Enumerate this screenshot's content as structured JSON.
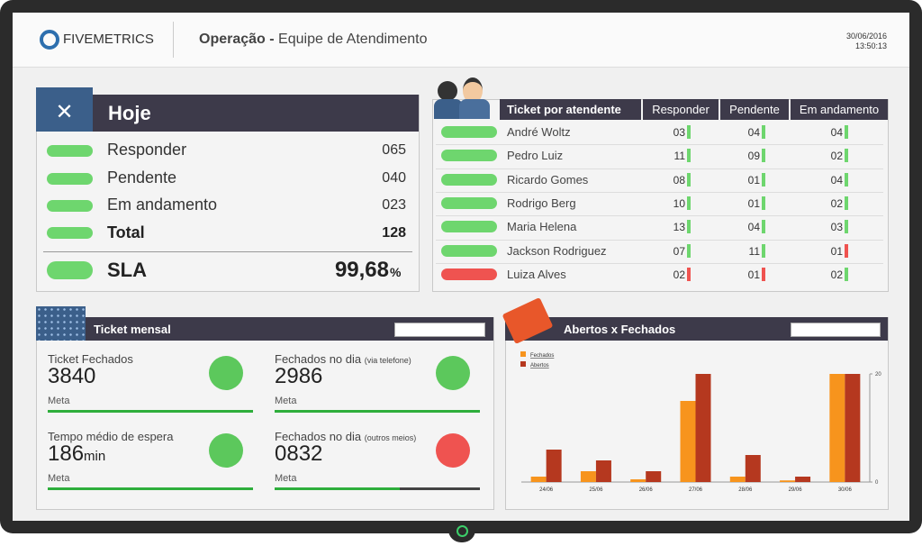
{
  "header": {
    "brand": "FIVEMETRICS",
    "title_bold": "Operação -",
    "title": "Equipe de Atendimento",
    "date": "30/06/2016",
    "time": "13:50:13"
  },
  "today": {
    "title": "Hoje",
    "rows": [
      {
        "label": "Responder",
        "value": "065"
      },
      {
        "label": "Pendente",
        "value": "040"
      },
      {
        "label": "Em andamento",
        "value": "023"
      }
    ],
    "total_label": "Total",
    "total_value": "128",
    "sla_label": "SLA",
    "sla_value": "99,68",
    "sla_unit": "%"
  },
  "agents": {
    "title": "Ticket por atendente",
    "columns": [
      "Responder",
      "Pendente",
      "Em andamento"
    ],
    "rows": [
      {
        "name": "André Woltz",
        "color": "#6ed66e",
        "cells": [
          {
            "text": "03",
            "color": "#6ed66e"
          },
          {
            "text": "04",
            "color": "#6ed66e"
          },
          {
            "text": "04",
            "color": "#6ed66e"
          }
        ]
      },
      {
        "name": "Pedro Luiz",
        "color": "#6ed66e",
        "cells": [
          {
            "text": "11",
            "color": "#6ed66e"
          },
          {
            "text": "09",
            "color": "#6ed66e"
          },
          {
            "text": "02",
            "color": "#6ed66e"
          }
        ]
      },
      {
        "name": "Ricardo Gomes",
        "color": "#6ed66e",
        "cells": [
          {
            "text": "08",
            "color": "#6ed66e"
          },
          {
            "text": "01",
            "color": "#6ed66e"
          },
          {
            "text": "04",
            "color": "#6ed66e"
          }
        ]
      },
      {
        "name": "Rodrigo Berg",
        "color": "#6ed66e",
        "cells": [
          {
            "text": "10",
            "color": "#6ed66e"
          },
          {
            "text": "01",
            "color": "#6ed66e"
          },
          {
            "text": "02",
            "color": "#6ed66e"
          }
        ]
      },
      {
        "name": "Maria Helena",
        "color": "#6ed66e",
        "cells": [
          {
            "text": "13",
            "color": "#6ed66e"
          },
          {
            "text": "04",
            "color": "#6ed66e"
          },
          {
            "text": "03",
            "color": "#6ed66e"
          }
        ]
      },
      {
        "name": "Jackson Rodriguez",
        "color": "#6ed66e",
        "cells": [
          {
            "text": "07",
            "color": "#6ed66e"
          },
          {
            "text": "11",
            "color": "#6ed66e"
          },
          {
            "text": "01",
            "color": "#ef5350"
          }
        ]
      },
      {
        "name": "Luiza Alves",
        "color": "#ef5350",
        "cells": [
          {
            "text": "02",
            "color": "#ef5350"
          },
          {
            "text": "01",
            "color": "#ef5350"
          },
          {
            "text": "02",
            "color": "#6ed66e"
          }
        ]
      }
    ]
  },
  "monthly": {
    "title": "Ticket mensal",
    "items": [
      {
        "label": "Ticket Fechados",
        "value": "3840",
        "meta": "Meta",
        "progress": 100,
        "icon_color": "#5cc85c"
      },
      {
        "label": "Fechados no dia",
        "note": "(via telefone)",
        "value": "2986",
        "meta": "Meta",
        "progress": 100,
        "icon_color": "#5cc85c"
      },
      {
        "label": "Tempo médio de espera",
        "value": "186",
        "unit": "min",
        "meta": "Meta",
        "progress": 100,
        "icon_color": "#5cc85c"
      },
      {
        "label": "Fechados no dia",
        "note": "(outros meios)",
        "value": "0832",
        "meta": "Meta",
        "progress": 61,
        "icon_color": "#ef5350"
      }
    ]
  },
  "chart": {
    "type": "bar",
    "title": "Abertos x Fechados",
    "categories": [
      "24/06",
      "25/06",
      "26/06",
      "27/06",
      "28/06",
      "29/06",
      "30/06"
    ],
    "series": [
      {
        "name": "Fechados",
        "color": "#f7941d",
        "values": [
          1,
          2,
          0.5,
          15,
          1,
          0.3,
          20
        ]
      },
      {
        "name": "Abertos",
        "color": "#b5381f",
        "values": [
          6,
          4,
          2,
          20,
          5,
          1,
          20
        ]
      }
    ],
    "ylim": [
      0,
      20
    ],
    "yticks": [
      0,
      20
    ]
  }
}
